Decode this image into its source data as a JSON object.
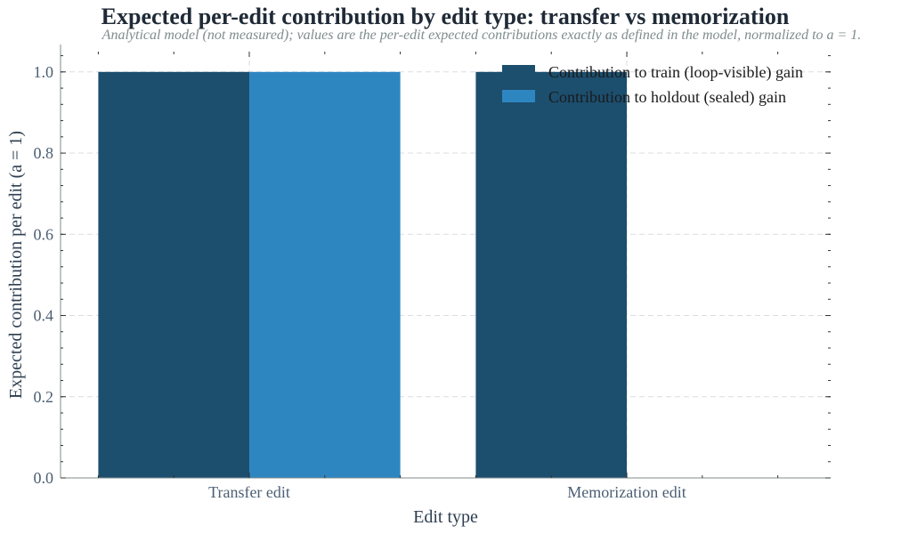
{
  "chart_data": {
    "type": "bar",
    "title": "Expected per-edit contribution by edit type: transfer vs memorization",
    "subtitle": "Analytical model (not measured); values are the per-edit expected contributions exactly as defined in the model, normalized to a = 1.",
    "xlabel": "Edit type",
    "ylabel": "Expected contribution per edit (a = 1)",
    "categories": [
      "Transfer edit",
      "Memorization edit"
    ],
    "series": [
      {
        "name": "Contribution to train (loop-visible) gain",
        "values": [
          1.0,
          1.0
        ],
        "color": "#1c4e6e"
      },
      {
        "name": "Contribution to holdout (sealed) gain",
        "values": [
          1.0,
          0.0
        ],
        "color": "#2e86c1"
      }
    ],
    "ylim": [
      0,
      1.05
    ],
    "yticks": [
      0.0,
      0.2,
      0.4,
      0.6,
      0.8,
      1.0
    ],
    "grid": true,
    "legend_position": "top-right"
  }
}
